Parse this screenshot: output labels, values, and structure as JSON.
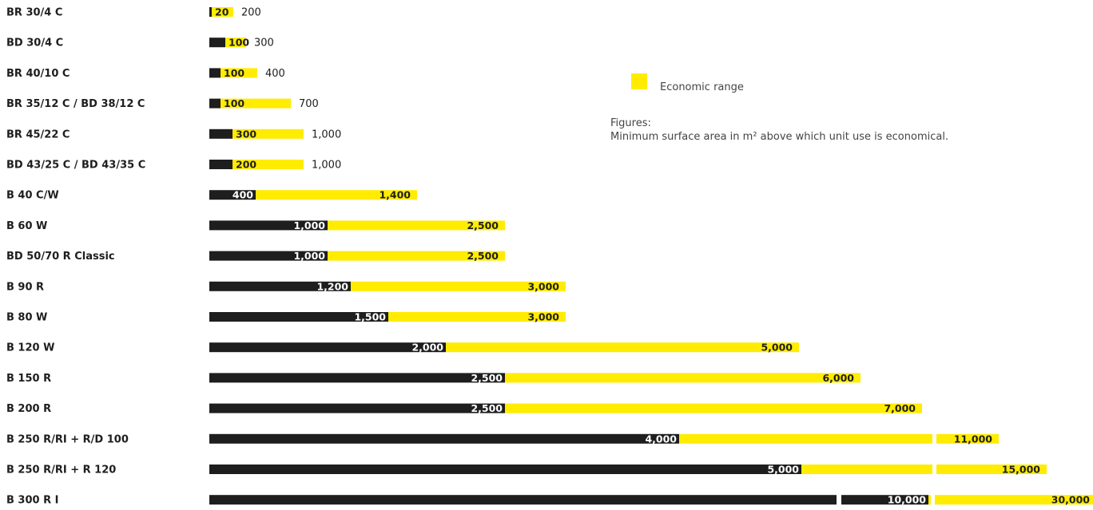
{
  "colors": {
    "economic": "#ffec00",
    "base": "#1e1e1e",
    "background": "#ffffff"
  },
  "legend": {
    "swatch_label": "Economic range",
    "figures_heading": "Figures:",
    "figures_text": "Minimum surface area in m² above which unit use is economical."
  },
  "chart_data": {
    "type": "bar",
    "orientation": "horizontal",
    "scale": "nonlinear (segment lengths not proportional to labeled values)",
    "legend": [
      "Economic range"
    ],
    "rows": [
      {
        "label": "BR 30/4 C",
        "start": 20,
        "end": 200
      },
      {
        "label": "BD 30/4 C",
        "start": 100,
        "end": 300
      },
      {
        "label": "BR 40/10 C",
        "start": 100,
        "end": 400
      },
      {
        "label": "BR 35/12 C / BD 38/12 C",
        "start": 100,
        "end": 700
      },
      {
        "label": "BR 45/22 C",
        "start": 300,
        "end": 1000
      },
      {
        "label": "BD 43/25 C / BD 43/35 C",
        "start": 200,
        "end": 1000
      },
      {
        "label": "B 40 C/W",
        "start": 400,
        "end": 1400
      },
      {
        "label": "B 60 W",
        "start": 1000,
        "end": 2500
      },
      {
        "label": "BD 50/70 R Classic",
        "start": 1000,
        "end": 2500
      },
      {
        "label": "B 90 R",
        "start": 1200,
        "end": 3000
      },
      {
        "label": "B 80 W",
        "start": 1500,
        "end": 3000
      },
      {
        "label": "B 120 W",
        "start": 2000,
        "end": 5000
      },
      {
        "label": "B 150 R",
        "start": 2500,
        "end": 6000
      },
      {
        "label": "B 200 R",
        "start": 2500,
        "end": 7000
      },
      {
        "label": "B 250 R/RI + R/D 100",
        "start": 4000,
        "end": 11000
      },
      {
        "label": "B 250 R/RI + R 120",
        "start": 5000,
        "end": 15000
      },
      {
        "label": "B 300 R I",
        "start": 10000,
        "end": 30000
      }
    ],
    "start_labels": [
      "20",
      "100",
      "100",
      "100",
      "300",
      "200",
      "400",
      "1,000",
      "1,000",
      "1,200",
      "1,500",
      "2,000",
      "2,500",
      "2,500",
      "4,000",
      "5,000",
      "10,000"
    ],
    "end_labels": [
      "200",
      "300",
      "400",
      "700",
      "1,000",
      "1,000",
      "1,400",
      "2,500",
      "2,500",
      "3,000",
      "3,000",
      "5,000",
      "6,000",
      "7,000",
      "11,000",
      "15,000",
      "30,000"
    ]
  }
}
